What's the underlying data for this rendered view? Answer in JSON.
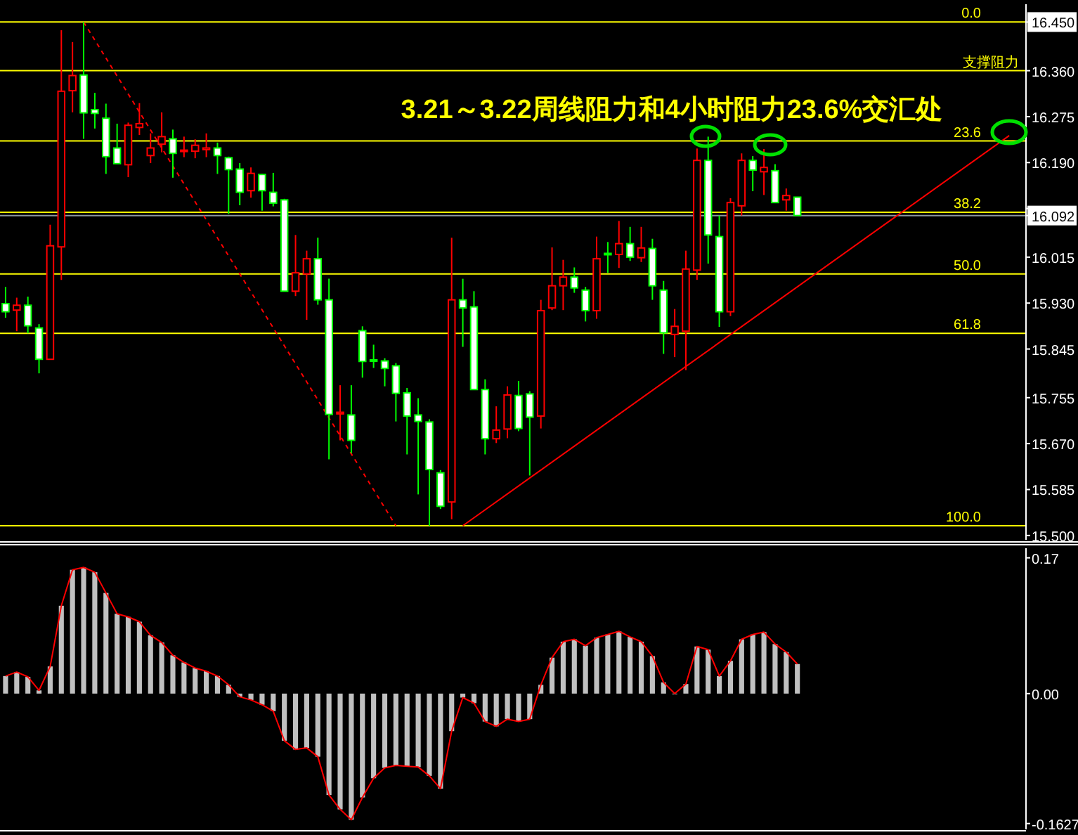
{
  "chart_data": [
    {
      "type": "candlestick",
      "annotations": [
        "3.21～3.22周线阻力和4小时阻力23.6%交汇处",
        {
          "text": "0.0",
          "y": 16.45
        },
        {
          "text": "23.6",
          "y": 16.23
        },
        {
          "text": "38.2",
          "y": 16.098
        },
        {
          "text": "50.0",
          "y": 15.984
        },
        {
          "text": "61.8",
          "y": 15.874
        },
        {
          "text": "100.0",
          "y": 15.518
        }
      ],
      "categories": [
        null,
        null,
        null,
        null,
        null,
        null,
        null,
        null,
        null,
        null,
        null,
        null,
        null,
        null,
        null,
        null,
        null,
        null,
        null,
        null,
        null,
        null,
        null,
        null,
        null,
        null,
        null,
        null,
        null,
        null,
        null,
        null,
        null,
        null,
        null,
        null,
        null,
        null,
        null,
        null,
        null,
        null,
        null,
        null,
        null,
        null,
        null,
        null,
        null,
        null,
        null,
        null,
        null,
        null,
        null,
        null,
        null,
        null,
        null,
        null,
        null,
        null,
        null,
        null,
        null,
        null,
        null,
        null,
        null,
        null,
        null,
        null,
        null,
        null,
        null,
        null,
        null,
        null,
        null,
        null,
        null,
        null,
        null,
        null,
        null,
        null,
        null,
        null,
        null,
        null,
        null,
        null
      ],
      "ohlc": [
        [
          15.929,
          15.96,
          15.903,
          15.914
        ],
        [
          15.917,
          15.94,
          15.878,
          15.926
        ],
        [
          15.926,
          15.942,
          15.874,
          15.888
        ],
        [
          15.884,
          15.891,
          15.8,
          15.826
        ],
        [
          15.826,
          16.075,
          15.826,
          16.036
        ],
        [
          16.034,
          16.435,
          15.973,
          16.322
        ],
        [
          16.323,
          16.413,
          16.283,
          16.351
        ],
        [
          16.352,
          16.45,
          16.234,
          16.282
        ],
        [
          16.288,
          16.319,
          16.253,
          16.281
        ],
        [
          16.272,
          16.299,
          16.169,
          16.201
        ],
        [
          16.217,
          16.262,
          16.188,
          16.188
        ],
        [
          16.186,
          16.264,
          16.163,
          16.259
        ],
        [
          16.255,
          16.3,
          16.241,
          16.262
        ],
        [
          16.203,
          16.244,
          16.189,
          16.217
        ],
        [
          16.224,
          16.283,
          16.209,
          16.238
        ],
        [
          16.234,
          16.251,
          16.162,
          16.207
        ],
        [
          16.211,
          16.238,
          16.2,
          16.213
        ],
        [
          16.211,
          16.233,
          16.198,
          16.222
        ],
        [
          16.214,
          16.244,
          16.2,
          16.217
        ],
        [
          16.217,
          16.227,
          16.169,
          16.203
        ],
        [
          16.199,
          16.201,
          16.095,
          16.177
        ],
        [
          16.178,
          16.189,
          16.111,
          16.135
        ],
        [
          16.138,
          16.181,
          16.125,
          16.17
        ],
        [
          16.168,
          16.169,
          16.101,
          16.138
        ],
        [
          16.135,
          16.171,
          16.109,
          16.115
        ],
        [
          16.121,
          16.123,
          15.952,
          15.952
        ],
        [
          15.952,
          16.056,
          15.943,
          15.986
        ],
        [
          15.984,
          16.027,
          15.899,
          16.012
        ],
        [
          16.012,
          16.051,
          15.927,
          15.936
        ],
        [
          15.936,
          15.975,
          15.641,
          15.724
        ],
        [
          15.725,
          15.778,
          15.676,
          15.728
        ],
        [
          15.723,
          15.778,
          15.652,
          15.676
        ],
        [
          15.879,
          15.887,
          15.792,
          15.822
        ],
        [
          15.825,
          15.853,
          15.81,
          15.823
        ],
        [
          15.823,
          15.828,
          15.776,
          15.809
        ],
        [
          15.814,
          15.819,
          15.711,
          15.763
        ],
        [
          15.764,
          15.773,
          15.65,
          15.721
        ],
        [
          15.723,
          15.754,
          15.576,
          15.711
        ],
        [
          15.71,
          15.715,
          15.518,
          15.622
        ],
        [
          15.616,
          15.621,
          15.549,
          15.554
        ],
        [
          15.562,
          16.051,
          15.53,
          15.936
        ],
        [
          15.936,
          15.975,
          15.849,
          15.921
        ],
        [
          15.923,
          15.952,
          15.77,
          15.77
        ],
        [
          15.77,
          15.789,
          15.65,
          15.679
        ],
        [
          15.679,
          15.739,
          15.671,
          15.695
        ],
        [
          15.697,
          15.776,
          15.68,
          15.76
        ],
        [
          15.759,
          15.786,
          15.693,
          15.698
        ],
        [
          15.762,
          15.767,
          15.611,
          15.719
        ],
        [
          15.721,
          15.936,
          15.698,
          15.916
        ],
        [
          15.921,
          16.033,
          15.917,
          15.962
        ],
        [
          15.962,
          16.01,
          15.917,
          15.978
        ],
        [
          15.978,
          15.996,
          15.949,
          15.958
        ],
        [
          15.954,
          15.96,
          15.896,
          15.916
        ],
        [
          15.916,
          16.053,
          15.901,
          16.012
        ],
        [
          16.022,
          16.043,
          15.986,
          16.02
        ],
        [
          16.02,
          16.082,
          15.995,
          16.04
        ],
        [
          16.04,
          16.071,
          16.008,
          16.015
        ],
        [
          16.014,
          16.071,
          16.006,
          16.032
        ],
        [
          16.031,
          16.049,
          15.936,
          15.962
        ],
        [
          15.954,
          15.971,
          15.836,
          15.875
        ],
        [
          15.872,
          15.919,
          15.83,
          15.887
        ],
        [
          15.878,
          16.027,
          15.806,
          15.993
        ],
        [
          15.991,
          16.216,
          15.973,
          16.194
        ],
        [
          16.194,
          16.238,
          16.003,
          16.056
        ],
        [
          16.053,
          16.092,
          15.886,
          15.914
        ],
        [
          15.914,
          16.124,
          15.906,
          16.116
        ],
        [
          16.11,
          16.207,
          16.092,
          16.194
        ],
        [
          16.194,
          16.202,
          16.137,
          16.176
        ],
        [
          16.173,
          16.215,
          16.13,
          16.181
        ],
        [
          16.175,
          16.187,
          16.116,
          16.116
        ],
        [
          16.121,
          16.142,
          16.101,
          16.129
        ],
        [
          16.126,
          16.126,
          16.092,
          16.092
        ],
        null,
        null,
        null,
        null,
        null,
        null,
        null,
        null,
        null,
        null,
        null,
        null,
        null,
        null,
        null,
        null,
        null,
        null,
        null,
        null
      ],
      "series": [
        {
          "type": "line",
          "values": [
            null,
            null,
            null,
            null,
            null,
            null,
            null,
            16.45,
            null,
            null,
            null,
            null,
            null,
            null,
            null,
            null,
            null,
            null,
            null,
            null,
            null,
            null,
            null,
            null,
            null,
            null,
            null,
            null,
            null,
            null,
            null,
            null,
            null,
            null,
            null,
            15.518,
            null,
            null,
            null,
            null,
            null,
            null,
            null,
            null,
            null,
            null,
            null,
            null,
            null,
            null,
            null,
            null,
            null,
            null,
            null,
            null,
            null,
            null,
            null,
            null,
            null,
            null,
            null,
            null,
            null,
            null,
            null,
            null,
            null,
            null,
            null,
            null,
            null,
            null,
            null,
            null,
            null,
            null,
            null,
            null,
            null,
            null,
            null,
            null,
            null,
            null,
            null,
            null,
            null,
            null,
            null,
            null
          ],
          "color": "#ff0000",
          "line_style": "dashed"
        },
        {
          "type": "line",
          "values": [
            null,
            null,
            null,
            null,
            null,
            null,
            null,
            null,
            null,
            null,
            null,
            null,
            null,
            null,
            null,
            null,
            null,
            null,
            null,
            null,
            null,
            null,
            null,
            null,
            null,
            null,
            null,
            null,
            null,
            null,
            null,
            null,
            null,
            null,
            null,
            null,
            null,
            null,
            null,
            null,
            null,
            15.518,
            null,
            null,
            null,
            null,
            null,
            null,
            null,
            null,
            null,
            null,
            null,
            null,
            null,
            null,
            null,
            null,
            null,
            null,
            null,
            null,
            null,
            null,
            null,
            null,
            null,
            null,
            null,
            null,
            null,
            null,
            null,
            null,
            null,
            null,
            null,
            null,
            null,
            null,
            null,
            null,
            null,
            null,
            null,
            null,
            null,
            null,
            null,
            null,
            16.24,
            null
          ],
          "color": "#ff0000",
          "line_style": "solid"
        }
      ],
      "ylim": [
        15.492,
        16.483
      ],
      "yticks": [
        {
          "value": 16.45,
          "label": "16.450"
        },
        {
          "value": 16.36,
          "label": "16.360"
        },
        {
          "value": 16.275,
          "label": "16.275"
        },
        {
          "value": 16.19,
          "label": "16.190"
        },
        {
          "value": 16.105,
          "label": null
        },
        {
          "value": 16.092,
          "label": "16.092"
        },
        {
          "value": 16.015,
          "label": "16.015"
        },
        {
          "value": 15.93,
          "label": "15.930"
        },
        {
          "value": 15.845,
          "label": "15.845"
        },
        {
          "value": 15.755,
          "label": "15.755"
        },
        {
          "value": 15.67,
          "label": "15.670"
        },
        {
          "value": 15.585,
          "label": "15.585"
        },
        {
          "value": 15.5,
          "label": "15.500"
        }
      ],
      "ref_lines": [
        {
          "axis": "y",
          "value": 16.45,
          "color": "#ffff00"
        },
        {
          "axis": "y",
          "value": 16.36,
          "label": "支撑阻力",
          "color": "#ffff00"
        },
        {
          "axis": "y",
          "value": 16.23,
          "color": "#ffff00"
        },
        {
          "axis": "y",
          "value": 16.098,
          "color": "#ffff00"
        },
        {
          "axis": "y",
          "value": 15.984,
          "color": "#ffff00"
        },
        {
          "axis": "y",
          "value": 15.874,
          "color": "#ffff00"
        },
        {
          "axis": "y",
          "value": 15.518,
          "color": "#ffff00"
        },
        {
          "axis": "y",
          "value": 16.092,
          "color": "#8c96a0"
        }
      ]
    },
    {
      "type": "bar",
      "categories": [
        null,
        null,
        null,
        null,
        null,
        null,
        null,
        null,
        null,
        null,
        null,
        null,
        null,
        null,
        null,
        null,
        null,
        null,
        null,
        null,
        null,
        null,
        null,
        null,
        null,
        null,
        null,
        null,
        null,
        null,
        null,
        null,
        null,
        null,
        null,
        null,
        null,
        null,
        null,
        null,
        null,
        null,
        null,
        null,
        null,
        null,
        null,
        null,
        null,
        null,
        null,
        null,
        null,
        null,
        null,
        null,
        null,
        null,
        null,
        null,
        null,
        null,
        null,
        null,
        null,
        null,
        null,
        null,
        null,
        null,
        null,
        null,
        null,
        null,
        null,
        null,
        null,
        null,
        null,
        null,
        null,
        null,
        null,
        null,
        null,
        null,
        null,
        null,
        null,
        null,
        null,
        null
      ],
      "series": [
        {
          "type": "bar",
          "color": "#c0c0c0",
          "values": [
            0.022,
            0.027,
            0.021,
            0.004,
            0.034,
            0.11,
            0.155,
            0.158,
            0.152,
            0.126,
            0.1,
            0.096,
            0.09,
            0.073,
            0.064,
            0.048,
            0.039,
            0.032,
            0.028,
            0.022,
            0.011,
            -0.004,
            -0.008,
            -0.014,
            -0.022,
            -0.059,
            -0.07,
            -0.068,
            -0.079,
            -0.127,
            -0.145,
            -0.158,
            -0.13,
            -0.106,
            -0.093,
            -0.09,
            -0.091,
            -0.092,
            -0.103,
            -0.119,
            -0.047,
            -0.005,
            -0.012,
            -0.035,
            -0.041,
            -0.032,
            -0.035,
            -0.032,
            0.011,
            0.045,
            0.065,
            0.068,
            0.06,
            0.07,
            0.074,
            0.078,
            0.071,
            0.065,
            0.047,
            0.014,
            0.0,
            0.012,
            0.059,
            0.055,
            0.022,
            0.041,
            0.068,
            0.074,
            0.077,
            0.062,
            0.052,
            0.037,
            null,
            null,
            null,
            null,
            null,
            null,
            null,
            null,
            null,
            null,
            null,
            null,
            null,
            null,
            null,
            null,
            null,
            null,
            null,
            null
          ]
        },
        {
          "type": "line",
          "color": "#ff0000",
          "values": [
            0.022,
            0.027,
            0.021,
            0.004,
            0.034,
            0.11,
            0.155,
            0.158,
            0.152,
            0.126,
            0.1,
            0.096,
            0.09,
            0.073,
            0.064,
            0.048,
            0.039,
            0.032,
            0.028,
            0.022,
            0.011,
            -0.004,
            -0.008,
            -0.014,
            -0.022,
            -0.059,
            -0.07,
            -0.068,
            -0.079,
            -0.127,
            -0.145,
            -0.158,
            -0.13,
            -0.106,
            -0.093,
            -0.09,
            -0.091,
            -0.092,
            -0.103,
            -0.119,
            -0.047,
            -0.005,
            -0.012,
            -0.035,
            -0.041,
            -0.032,
            -0.035,
            -0.032,
            0.011,
            0.045,
            0.065,
            0.068,
            0.06,
            0.07,
            0.074,
            0.078,
            0.071,
            0.065,
            0.047,
            0.014,
            0.0,
            0.012,
            0.059,
            0.055,
            0.022,
            0.041,
            0.068,
            0.074,
            0.077,
            0.062,
            0.052,
            0.037,
            null,
            null,
            null,
            null,
            null,
            null,
            null,
            null,
            null,
            null,
            null,
            null,
            null,
            null,
            null,
            null,
            null,
            null,
            null,
            null
          ]
        }
      ],
      "ylim": [
        -0.17,
        0.182
      ],
      "yticks": [
        0.17,
        {
          "value": 0,
          "label": "0.00"
        },
        -0.1627
      ]
    }
  ]
}
